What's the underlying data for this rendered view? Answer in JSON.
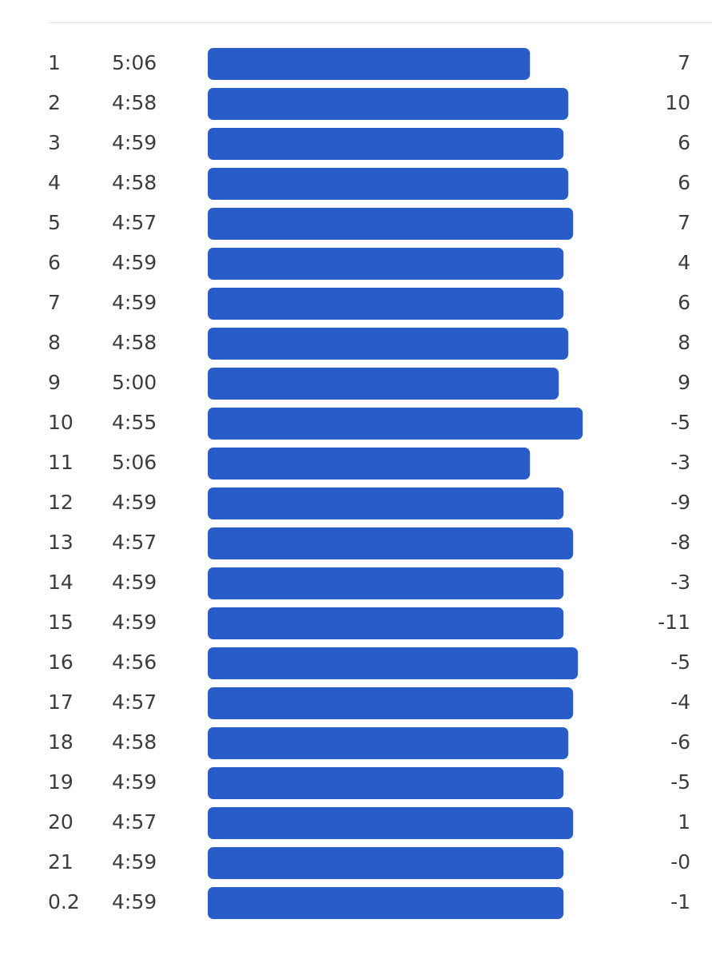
{
  "rows": [
    {
      "km": "1",
      "pace": "5:06",
      "elev": "7"
    },
    {
      "km": "2",
      "pace": "4:58",
      "elev": "10"
    },
    {
      "km": "3",
      "pace": "4:59",
      "elev": "6"
    },
    {
      "km": "4",
      "pace": "4:58",
      "elev": "6"
    },
    {
      "km": "5",
      "pace": "4:57",
      "elev": "7"
    },
    {
      "km": "6",
      "pace": "4:59",
      "elev": "4"
    },
    {
      "km": "7",
      "pace": "4:59",
      "elev": "6"
    },
    {
      "km": "8",
      "pace": "4:58",
      "elev": "8"
    },
    {
      "km": "9",
      "pace": "5:00",
      "elev": "9"
    },
    {
      "km": "10",
      "pace": "4:55",
      "elev": "-5"
    },
    {
      "km": "11",
      "pace": "5:06",
      "elev": "-3"
    },
    {
      "km": "12",
      "pace": "4:59",
      "elev": "-9"
    },
    {
      "km": "13",
      "pace": "4:57",
      "elev": "-8"
    },
    {
      "km": "14",
      "pace": "4:59",
      "elev": "-3"
    },
    {
      "km": "15",
      "pace": "4:59",
      "elev": "-11"
    },
    {
      "km": "16",
      "pace": "4:56",
      "elev": "-5"
    },
    {
      "km": "17",
      "pace": "4:57",
      "elev": "-4"
    },
    {
      "km": "18",
      "pace": "4:58",
      "elev": "-6"
    },
    {
      "km": "19",
      "pace": "4:59",
      "elev": "-5"
    },
    {
      "km": "20",
      "pace": "4:57",
      "elev": "1"
    },
    {
      "km": "21",
      "pace": "4:59",
      "elev": "-0"
    },
    {
      "km": "0.2",
      "pace": "4:59",
      "elev": "-1"
    }
  ]
}
